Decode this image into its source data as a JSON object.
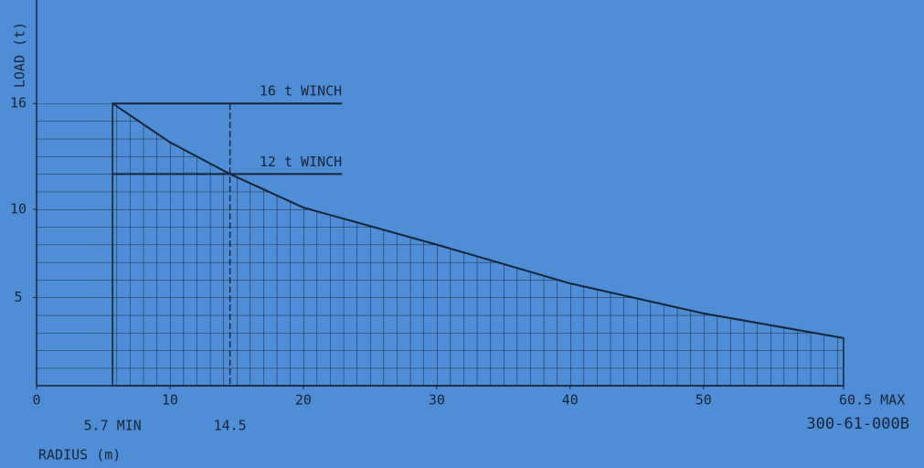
{
  "chart_data": {
    "type": "line",
    "y_label": "LOAD (t)",
    "x_label": "RADIUS (m)",
    "code": "300-61-000B",
    "x": [
      5.7,
      10,
      14.5,
      20,
      30,
      40,
      50,
      60.5
    ],
    "series": [
      {
        "name": null,
        "color": "#18243a",
        "values": [
          16,
          13.8,
          12,
          10.1,
          8.0,
          5.8,
          4.1,
          2.7
        ]
      }
    ],
    "xlim": [
      0,
      60.5
    ],
    "ylim": [
      0,
      17
    ],
    "xticks": [
      0,
      10,
      20,
      30,
      40,
      50,
      {
        "value": 60.5,
        "label": "60.5 MAX"
      }
    ],
    "yticks": [
      5,
      10,
      16
    ],
    "reference_lines": [
      {
        "label": "16 t WINCH",
        "y": 16,
        "x": [
          5.7,
          22.9
        ]
      },
      {
        "label": "12 t WINCH",
        "y": 12,
        "x": [
          5.7,
          22.9
        ]
      }
    ],
    "markers": [
      {
        "label": "5.7 MIN",
        "x": 5.7
      },
      {
        "label": "14.5",
        "x": 14.5
      }
    ]
  }
}
